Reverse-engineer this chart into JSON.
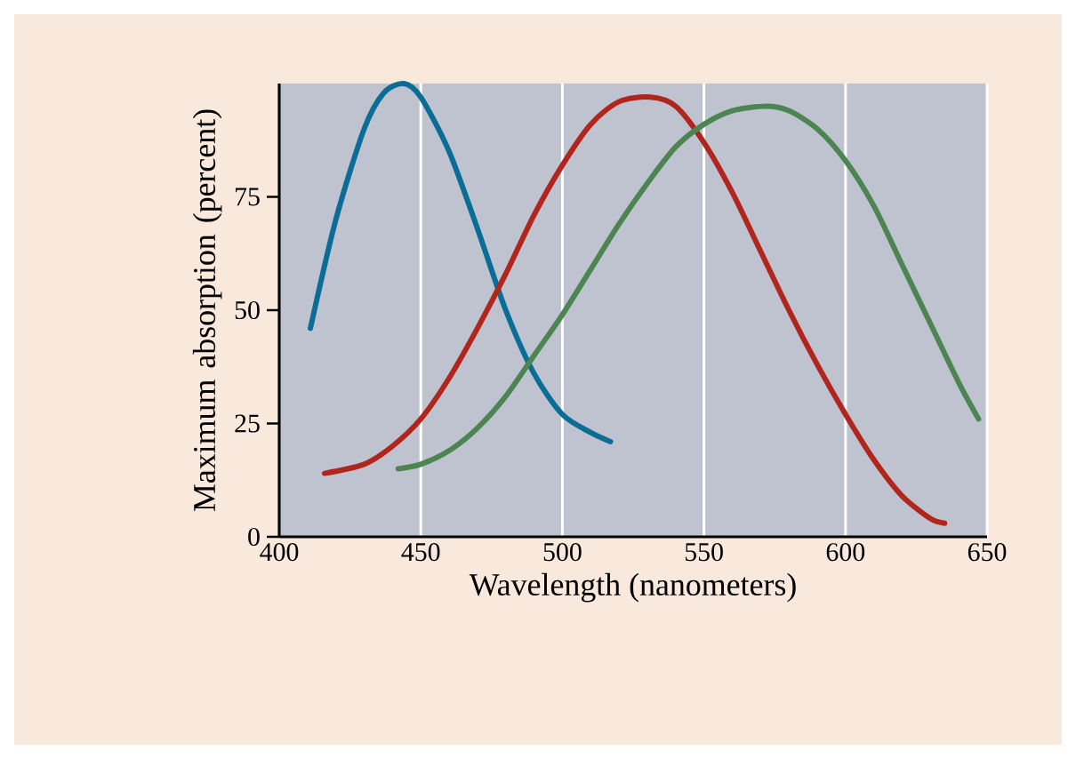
{
  "chart_data": {
    "type": "line",
    "xlabel": "Wavelength (nanometers)",
    "ylabel": "Maximum absorption (percent)",
    "xlim": [
      400,
      650
    ],
    "ylim": [
      0,
      100
    ],
    "xticks": [
      400,
      450,
      500,
      550,
      600,
      650
    ],
    "yticks": [
      0,
      25,
      50,
      75
    ],
    "grid": "x",
    "marker": "none",
    "line_style": "solid",
    "series": [
      {
        "color": "#0a6d95",
        "x": [
          411,
          420,
          430,
          437,
          444,
          450,
          460,
          470,
          480,
          490,
          500,
          510,
          517
        ],
        "values": [
          46,
          70,
          90,
          98,
          100,
          97,
          85,
          68,
          50,
          36,
          27,
          23,
          21
        ]
      },
      {
        "color": "#b0261c",
        "x": [
          416,
          430,
          440,
          450,
          460,
          470,
          480,
          490,
          500,
          510,
          520,
          531,
          540,
          550,
          560,
          570,
          580,
          590,
          600,
          610,
          620,
          630,
          635
        ],
        "values": [
          14,
          16,
          20,
          26,
          35,
          46,
          58,
          71,
          82,
          91,
          96,
          97,
          95,
          87,
          76,
          63,
          50,
          38,
          27,
          17,
          9,
          4,
          3
        ]
      },
      {
        "color": "#4c8552",
        "x": [
          442,
          450,
          460,
          470,
          480,
          490,
          500,
          510,
          520,
          530,
          540,
          550,
          560,
          572,
          580,
          590,
          600,
          610,
          620,
          630,
          640,
          647
        ],
        "values": [
          15,
          16,
          19,
          24,
          31,
          40,
          49,
          59,
          69,
          78,
          86,
          91,
          94,
          95,
          94,
          90,
          83,
          73,
          60,
          47,
          34,
          26
        ]
      }
    ]
  }
}
